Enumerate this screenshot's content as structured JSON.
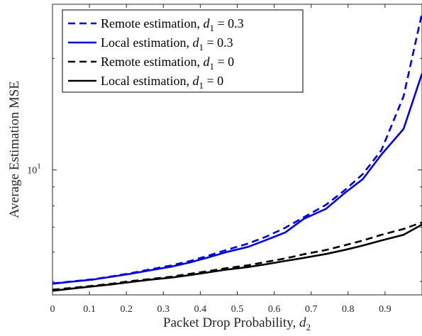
{
  "chart_data": {
    "type": "line",
    "xlabel": "Packet Drop Probability, ",
    "xlabel_math": "d",
    "xlabel_sub": "2",
    "ylabel": "Average Estimation MSE",
    "xlim": [
      0,
      1
    ],
    "ylim": [
      4.6,
      28
    ],
    "yscale": "log",
    "x_ticks": [
      0,
      0.1,
      0.2,
      0.3,
      0.4,
      0.5,
      0.6,
      0.7,
      0.8,
      0.9
    ],
    "x_tick_labels": [
      "0",
      "0.1",
      "0.2",
      "0.3",
      "0.4",
      "0.5",
      "0.6",
      "0.7",
      "0.8",
      "0.9"
    ],
    "y_ticks": [
      10
    ],
    "y_tick_base": "10",
    "y_tick_exp": "1",
    "grid": false,
    "legend_position": "top-left",
    "series": [
      {
        "name": "Remote estimation, ",
        "math": "d",
        "sub": "1",
        "eq": " = 0.3",
        "color": "#0000e6",
        "dash": "dashed",
        "x": [
          0,
          0.05,
          0.11,
          0.16,
          0.21,
          0.26,
          0.32,
          0.37,
          0.42,
          0.47,
          0.53,
          0.58,
          0.63,
          0.68,
          0.74,
          0.79,
          0.84,
          0.89,
          0.95,
          1.0
        ],
        "y": [
          4.94,
          5.0,
          5.07,
          5.16,
          5.26,
          5.38,
          5.52,
          5.67,
          5.86,
          6.08,
          6.33,
          6.62,
          6.98,
          7.45,
          8.05,
          8.8,
          9.75,
          11.3,
          15.8,
          26.5
        ]
      },
      {
        "name": "Local estimation, ",
        "math": "d",
        "sub": "1",
        "eq": " = 0.3",
        "color": "#0000e6",
        "dash": "solid",
        "x": [
          0,
          0.05,
          0.11,
          0.16,
          0.21,
          0.26,
          0.32,
          0.37,
          0.42,
          0.47,
          0.53,
          0.58,
          0.63,
          0.68,
          0.74,
          0.79,
          0.84,
          0.89,
          0.95,
          1.0
        ],
        "y": [
          4.93,
          4.99,
          5.06,
          5.15,
          5.24,
          5.35,
          5.48,
          5.62,
          5.8,
          6.0,
          6.2,
          6.48,
          6.78,
          7.38,
          7.85,
          8.65,
          9.45,
          11.0,
          12.9,
          18.2
        ]
      },
      {
        "name": "Remote estimation, ",
        "math": "d",
        "sub": "1",
        "eq": " = 0",
        "color": "#000000",
        "dash": "dashed",
        "x": [
          0,
          0.05,
          0.11,
          0.16,
          0.21,
          0.26,
          0.32,
          0.37,
          0.42,
          0.47,
          0.53,
          0.58,
          0.63,
          0.68,
          0.74,
          0.79,
          0.84,
          0.89,
          0.95,
          1.0
        ],
        "y": [
          4.75,
          4.8,
          4.87,
          4.93,
          5.01,
          5.07,
          5.15,
          5.24,
          5.33,
          5.43,
          5.53,
          5.65,
          5.77,
          5.92,
          6.08,
          6.26,
          6.45,
          6.68,
          6.93,
          7.22
        ]
      },
      {
        "name": "Local estimation, ",
        "math": "d",
        "sub": "1",
        "eq": " = 0",
        "color": "#000000",
        "dash": "solid",
        "x": [
          0,
          0.05,
          0.11,
          0.16,
          0.21,
          0.26,
          0.32,
          0.37,
          0.42,
          0.47,
          0.53,
          0.58,
          0.63,
          0.68,
          0.74,
          0.79,
          0.84,
          0.89,
          0.95,
          1.0
        ],
        "y": [
          4.72,
          4.78,
          4.85,
          4.91,
          4.98,
          5.05,
          5.12,
          5.2,
          5.29,
          5.38,
          5.47,
          5.57,
          5.68,
          5.79,
          5.93,
          6.08,
          6.25,
          6.45,
          6.68,
          7.12
        ]
      }
    ]
  }
}
